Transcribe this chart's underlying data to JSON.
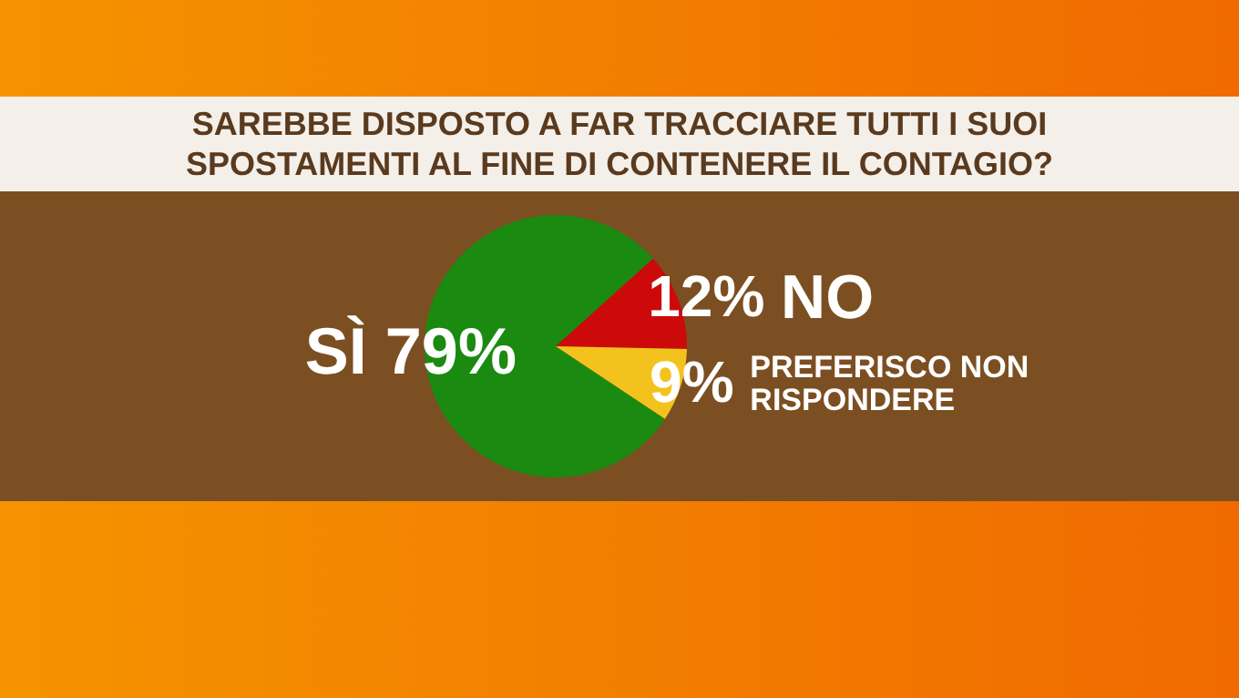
{
  "chart_data": {
    "type": "pie",
    "title": "SAREBBE DISPOSTO A FAR TRACCIARE TUTTI I SUOI SPOSTAMENTI AL FINE DI CONTENERE IL CONTAGIO?",
    "categories": [
      "SÌ",
      "NO",
      "PREFERISCO NON RISPONDERE"
    ],
    "values": [
      79,
      12,
      9
    ],
    "colors": [
      "#1b8a10",
      "#cc0a0a",
      "#f4c21c"
    ],
    "value_labels": [
      "79%",
      "12%",
      "9%"
    ],
    "legend": false
  }
}
